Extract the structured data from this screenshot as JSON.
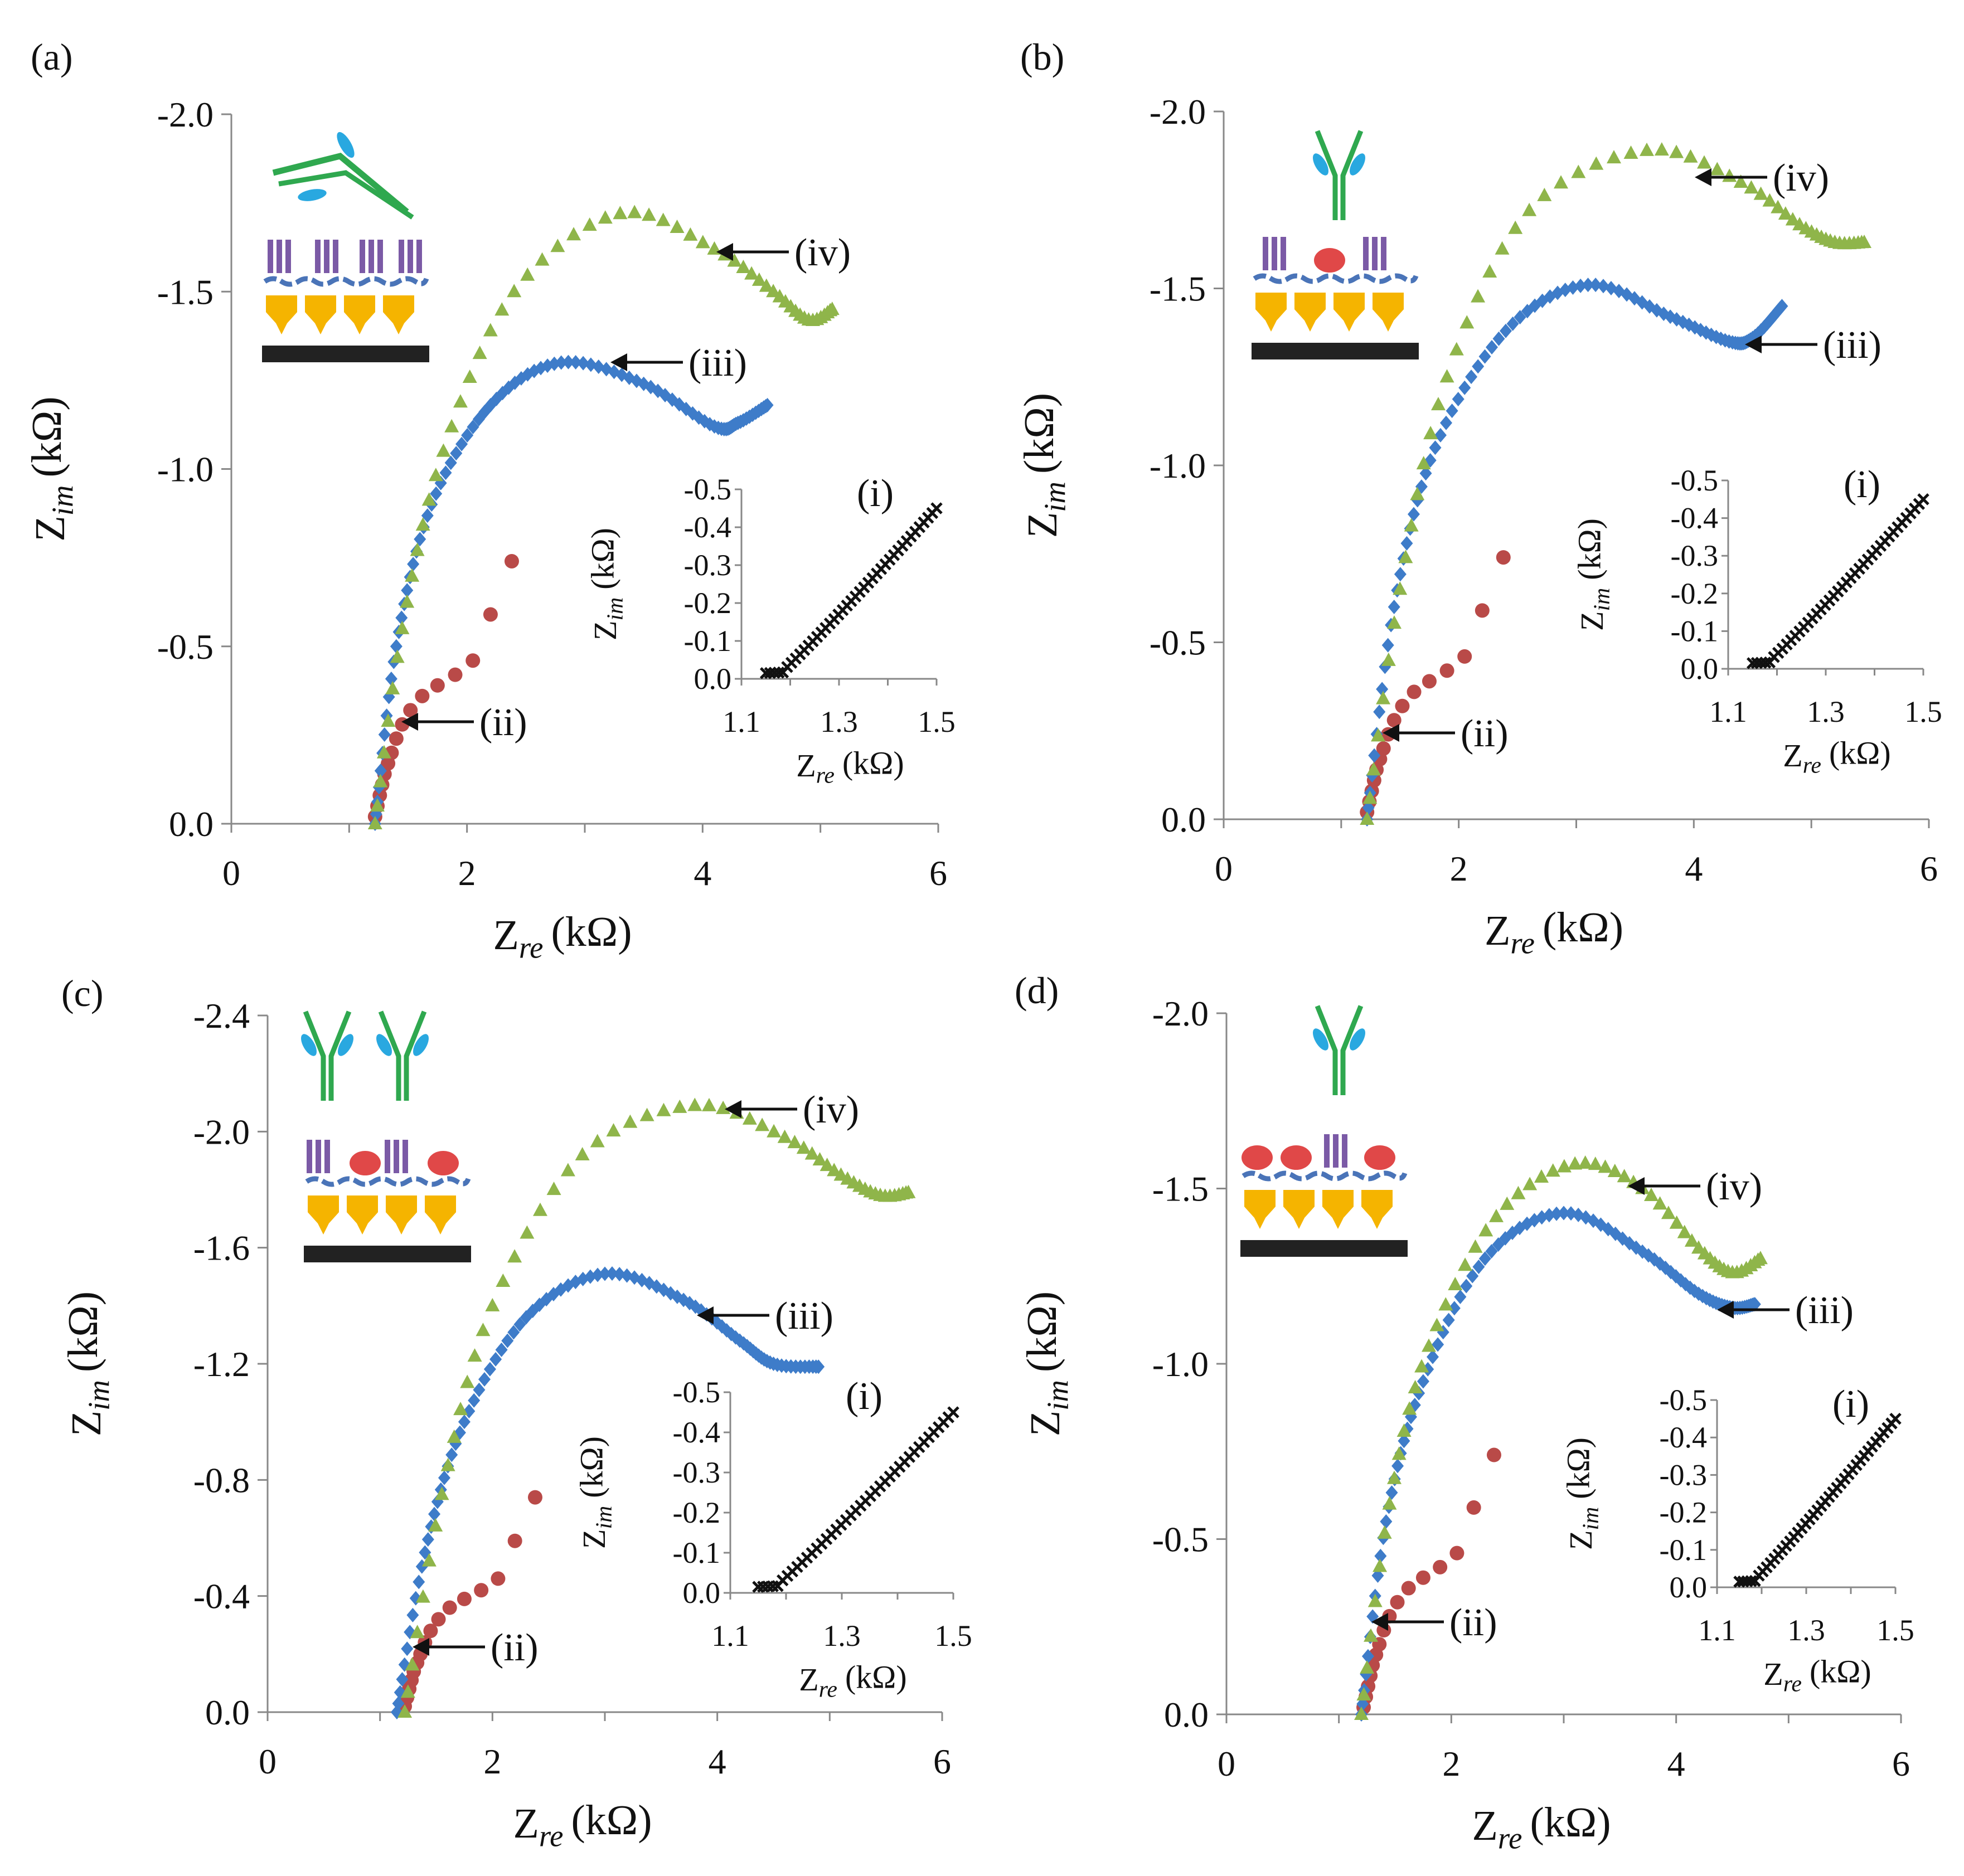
{
  "figure": {
    "panel_labels": [
      "(a)",
      "(b)",
      "(c)",
      "(d)"
    ]
  },
  "colors": {
    "ii": "#b94a48",
    "iii": "#3e7cc9",
    "iv": "#8fb54a",
    "inset": "#111111",
    "gold": "#f5b400",
    "purple": "#7b5aa6",
    "green_ab": "#2fa84f",
    "blue_drop": "#29a8e0",
    "red_drop": "#e04848",
    "electrode": "#222222"
  },
  "chart_data": [
    {
      "type": "scatter",
      "panel": "(a)",
      "xlabel": "Z_re (kΩ)",
      "ylabel": "Z_im (kΩ)",
      "xlim": [
        0,
        6
      ],
      "ylim": [
        0,
        -2.0
      ],
      "xticks": [
        "0",
        "2",
        "4",
        "6"
      ],
      "yticks": [
        "0.0",
        "-0.5",
        "-1.0",
        "-1.5",
        "-2.0"
      ],
      "series": [
        {
          "name": "(ii)",
          "marker": "circle",
          "x": [
            1.22,
            1.24,
            1.26,
            1.28,
            1.3,
            1.33,
            1.36,
            1.4,
            1.45,
            1.52,
            1.62,
            1.75,
            1.9,
            2.05,
            2.2,
            2.38
          ],
          "y": [
            -0.02,
            -0.05,
            -0.08,
            -0.11,
            -0.14,
            -0.17,
            -0.2,
            -0.24,
            -0.28,
            -0.32,
            -0.36,
            -0.39,
            -0.42,
            -0.46,
            -0.59,
            -0.74
          ]
        },
        {
          "name": "(iii)",
          "marker": "diamond",
          "anchors": [
            [
              1.22,
              0.0
            ],
            [
              1.4,
              -0.5
            ],
            [
              1.7,
              -0.9
            ],
            [
              2.2,
              -1.18
            ],
            [
              2.8,
              -1.3
            ],
            [
              3.5,
              -1.24
            ],
            [
              4.1,
              -1.12
            ],
            [
              4.3,
              -1.13
            ],
            [
              4.55,
              -1.18
            ]
          ]
        },
        {
          "name": "(iv)",
          "marker": "triangle",
          "anchors": [
            [
              1.22,
              0.0
            ],
            [
              1.45,
              -0.55
            ],
            [
              1.8,
              -1.05
            ],
            [
              2.4,
              -1.5
            ],
            [
              3.3,
              -1.72
            ],
            [
              4.1,
              -1.62
            ],
            [
              4.6,
              -1.5
            ],
            [
              4.9,
              -1.42
            ],
            [
              5.1,
              -1.45
            ]
          ]
        }
      ],
      "arrow_labels": [
        "(iv)",
        "(iii)",
        "(ii)"
      ],
      "inset": {
        "title": "(i)",
        "xlabel": "Z_re (kΩ)",
        "ylabel": "Z_im (kΩ)",
        "xlim": [
          1.1,
          1.5
        ],
        "ylim": [
          0,
          -0.5
        ],
        "xticks": [
          "1.1",
          "1.3",
          "1.5"
        ],
        "yticks": [
          "0.0",
          "-0.1",
          "-0.2",
          "-0.3",
          "-0.4",
          "-0.5"
        ],
        "series": [
          {
            "name": "(i)",
            "marker": "cross",
            "x_start": 1.15,
            "x_end": 1.5,
            "y_end": -0.45
          }
        ]
      },
      "schematic": "antibody-release"
    },
    {
      "type": "scatter",
      "panel": "(b)",
      "xlabel": "Z_re (kΩ)",
      "ylabel": "Z_im (kΩ)",
      "xlim": [
        0,
        6
      ],
      "ylim": [
        0,
        -2.0
      ],
      "xticks": [
        "0",
        "2",
        "4",
        "6"
      ],
      "yticks": [
        "0.0",
        "-0.5",
        "-1.0",
        "-1.5",
        "-2.0"
      ],
      "series": [
        {
          "name": "(ii)",
          "marker": "circle",
          "x": [
            1.22,
            1.24,
            1.26,
            1.28,
            1.3,
            1.33,
            1.36,
            1.4,
            1.45,
            1.52,
            1.62,
            1.75,
            1.9,
            2.05,
            2.2,
            2.38
          ],
          "y": [
            -0.02,
            -0.05,
            -0.08,
            -0.11,
            -0.14,
            -0.17,
            -0.2,
            -0.24,
            -0.28,
            -0.32,
            -0.36,
            -0.39,
            -0.42,
            -0.46,
            -0.59,
            -0.74
          ]
        },
        {
          "name": "(iii)",
          "marker": "diamond",
          "anchors": [
            [
              1.22,
              0.0
            ],
            [
              1.45,
              -0.6
            ],
            [
              1.8,
              -1.05
            ],
            [
              2.4,
              -1.38
            ],
            [
              3.1,
              -1.51
            ],
            [
              3.8,
              -1.42
            ],
            [
              4.3,
              -1.35
            ],
            [
              4.5,
              -1.36
            ],
            [
              4.75,
              -1.45
            ]
          ]
        },
        {
          "name": "(iv)",
          "marker": "triangle",
          "anchors": [
            [
              1.22,
              0.0
            ],
            [
              1.5,
              -0.65
            ],
            [
              1.9,
              -1.25
            ],
            [
              2.6,
              -1.72
            ],
            [
              3.6,
              -1.89
            ],
            [
              4.4,
              -1.8
            ],
            [
              4.9,
              -1.68
            ],
            [
              5.2,
              -1.63
            ],
            [
              5.45,
              -1.63
            ]
          ]
        }
      ],
      "arrow_labels": [
        "(iv)",
        "(iii)",
        "(ii)"
      ],
      "inset": {
        "title": "(i)",
        "xlabel": "Z_re (kΩ)",
        "ylabel": "Z_im (kΩ)",
        "xlim": [
          1.1,
          1.5
        ],
        "ylim": [
          0,
          -0.5
        ],
        "xticks": [
          "1.1",
          "1.3",
          "1.5"
        ],
        "yticks": [
          "0.0",
          "-0.1",
          "-0.2",
          "-0.3",
          "-0.4",
          "-0.5"
        ],
        "series": [
          {
            "name": "(i)",
            "marker": "cross",
            "x_start": 1.15,
            "x_end": 1.5,
            "y_end": -0.45
          }
        ]
      },
      "schematic": "antibody-one-antigen"
    },
    {
      "type": "scatter",
      "panel": "(c)",
      "xlabel": "Z_re (kΩ)",
      "ylabel": "Z_im (kΩ)",
      "xlim": [
        0,
        6
      ],
      "ylim": [
        0,
        -2.4
      ],
      "xticks": [
        "0",
        "2",
        "4",
        "6"
      ],
      "yticks": [
        "0.0",
        "-0.4",
        "-0.8",
        "-1.2",
        "-1.6",
        "-2.0",
        "-2.4"
      ],
      "series": [
        {
          "name": "(ii)",
          "marker": "circle",
          "x": [
            1.22,
            1.24,
            1.26,
            1.28,
            1.3,
            1.33,
            1.36,
            1.4,
            1.45,
            1.52,
            1.62,
            1.75,
            1.9,
            2.05,
            2.2,
            2.38
          ],
          "y": [
            -0.02,
            -0.05,
            -0.08,
            -0.11,
            -0.14,
            -0.17,
            -0.2,
            -0.24,
            -0.28,
            -0.32,
            -0.36,
            -0.39,
            -0.42,
            -0.46,
            -0.59,
            -0.74
          ]
        },
        {
          "name": "(iii)",
          "marker": "diamond",
          "anchors": [
            [
              1.15,
              0.0
            ],
            [
              1.4,
              -0.55
            ],
            [
              1.75,
              -1.0
            ],
            [
              2.3,
              -1.36
            ],
            [
              3.0,
              -1.51
            ],
            [
              3.7,
              -1.42
            ],
            [
              4.2,
              -1.28
            ],
            [
              4.5,
              -1.2
            ],
            [
              4.9,
              -1.19
            ]
          ]
        },
        {
          "name": "(iv)",
          "marker": "triangle",
          "anchors": [
            [
              1.22,
              0.0
            ],
            [
              1.55,
              -0.75
            ],
            [
              2.0,
              -1.4
            ],
            [
              2.8,
              -1.92
            ],
            [
              3.8,
              -2.09
            ],
            [
              4.6,
              -1.98
            ],
            [
              5.1,
              -1.85
            ],
            [
              5.45,
              -1.78
            ],
            [
              5.7,
              -1.79
            ]
          ]
        }
      ],
      "arrow_labels": [
        "(iv)",
        "(iii)",
        "(ii)"
      ],
      "inset": {
        "title": "(i)",
        "xlabel": "Z_re (kΩ)",
        "ylabel": "Z_im (kΩ)",
        "xlim": [
          1.1,
          1.5
        ],
        "ylim": [
          0,
          -0.5
        ],
        "xticks": [
          "1.1",
          "1.3",
          "1.5"
        ],
        "yticks": [
          "0.0",
          "-0.1",
          "-0.2",
          "-0.3",
          "-0.4",
          "-0.5"
        ],
        "series": [
          {
            "name": "(i)",
            "marker": "cross",
            "x_start": 1.15,
            "x_end": 1.5,
            "y_end": -0.45
          }
        ]
      },
      "schematic": "two-antibodies-two-antigens"
    },
    {
      "type": "scatter",
      "panel": "(d)",
      "xlabel": "Z_re (kΩ)",
      "ylabel": "Z_im (kΩ)",
      "xlim": [
        0,
        6
      ],
      "ylim": [
        0,
        -2.0
      ],
      "xticks": [
        "0",
        "2",
        "4",
        "6"
      ],
      "yticks": [
        "0.0",
        "-0.5",
        "-1.0",
        "-1.5",
        "-2.0"
      ],
      "series": [
        {
          "name": "(ii)",
          "marker": "circle",
          "x": [
            1.22,
            1.24,
            1.26,
            1.28,
            1.3,
            1.33,
            1.36,
            1.4,
            1.45,
            1.52,
            1.62,
            1.75,
            1.9,
            2.05,
            2.2,
            2.38
          ],
          "y": [
            -0.02,
            -0.05,
            -0.08,
            -0.11,
            -0.14,
            -0.17,
            -0.2,
            -0.24,
            -0.28,
            -0.32,
            -0.36,
            -0.39,
            -0.42,
            -0.46,
            -0.59,
            -0.74
          ]
        },
        {
          "name": "(iii)",
          "marker": "diamond",
          "anchors": [
            [
              1.2,
              0.0
            ],
            [
              1.42,
              -0.55
            ],
            [
              1.75,
              -0.95
            ],
            [
              2.3,
              -1.3
            ],
            [
              3.0,
              -1.43
            ],
            [
              3.7,
              -1.32
            ],
            [
              4.2,
              -1.2
            ],
            [
              4.5,
              -1.16
            ],
            [
              4.7,
              -1.17
            ]
          ]
        },
        {
          "name": "(iv)",
          "marker": "triangle",
          "anchors": [
            [
              1.2,
              0.0
            ],
            [
              1.45,
              -0.6
            ],
            [
              1.8,
              -1.05
            ],
            [
              2.4,
              -1.42
            ],
            [
              3.1,
              -1.57
            ],
            [
              3.7,
              -1.5
            ],
            [
              4.2,
              -1.33
            ],
            [
              4.5,
              -1.26
            ],
            [
              4.75,
              -1.3
            ]
          ]
        }
      ],
      "arrow_labels": [
        "(iv)",
        "(iii)",
        "(ii)"
      ],
      "inset": {
        "title": "(i)",
        "xlabel": "Z_re (kΩ)",
        "ylabel": "Z_im (kΩ)",
        "xlim": [
          1.1,
          1.5
        ],
        "ylim": [
          0,
          -0.5
        ],
        "xticks": [
          "1.1",
          "1.3",
          "1.5"
        ],
        "yticks": [
          "0.0",
          "-0.1",
          "-0.2",
          "-0.3",
          "-0.4",
          "-0.5"
        ],
        "series": [
          {
            "name": "(i)",
            "marker": "cross",
            "x_start": 1.15,
            "x_end": 1.5,
            "y_end": -0.45
          }
        ]
      },
      "schematic": "one-antibody-three-antigens"
    }
  ]
}
